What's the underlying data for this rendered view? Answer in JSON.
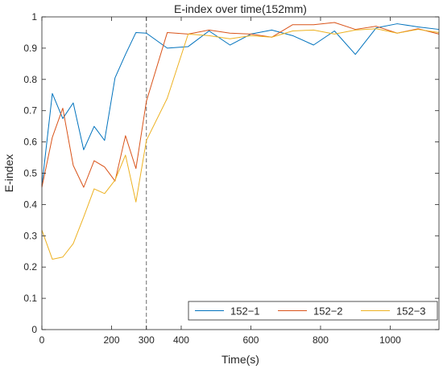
{
  "chart_data": {
    "type": "line",
    "title": "E-index over time(152mm)",
    "xlabel": "Time(s)",
    "ylabel": "E-index",
    "xlim": [
      0,
      1140
    ],
    "ylim": [
      0,
      1
    ],
    "x_ticks": [
      0,
      200,
      300,
      400,
      600,
      800,
      1000
    ],
    "y_ticks": [
      0,
      0.1,
      0.2,
      0.3,
      0.4,
      0.5,
      0.6,
      0.7,
      0.8,
      0.9,
      1
    ],
    "y_tick_labels": [
      "0",
      "0.1",
      "0.2",
      "0.3",
      "0.4",
      "0.5",
      "0.6",
      "0.7",
      "0.8",
      "0.9",
      "1"
    ],
    "grid": false,
    "legend_position": "bottom-right",
    "reference_line": {
      "x": 300,
      "style": "dashed"
    },
    "series": [
      {
        "name": "152−1",
        "color": "#0072BD",
        "x": [
          0,
          30,
          60,
          90,
          120,
          150,
          180,
          210,
          240,
          270,
          300,
          360,
          420,
          480,
          540,
          600,
          660,
          720,
          780,
          840,
          900,
          960,
          1020,
          1080,
          1140
        ],
        "y": [
          0.46,
          0.755,
          0.675,
          0.725,
          0.575,
          0.65,
          0.605,
          0.805,
          0.88,
          0.95,
          0.948,
          0.9,
          0.905,
          0.955,
          0.91,
          0.945,
          0.958,
          0.94,
          0.91,
          0.955,
          0.88,
          0.965,
          0.978,
          0.968,
          0.96
        ]
      },
      {
        "name": "152−2",
        "color": "#D95319",
        "x": [
          0,
          30,
          60,
          90,
          120,
          150,
          180,
          210,
          240,
          270,
          300,
          360,
          420,
          480,
          540,
          600,
          660,
          720,
          780,
          840,
          900,
          960,
          1020,
          1080,
          1140
        ],
        "y": [
          0.455,
          0.615,
          0.708,
          0.525,
          0.455,
          0.54,
          0.52,
          0.475,
          0.62,
          0.515,
          0.73,
          0.95,
          0.945,
          0.958,
          0.948,
          0.945,
          0.935,
          0.975,
          0.975,
          0.982,
          0.96,
          0.97,
          0.948,
          0.962,
          0.945
        ]
      },
      {
        "name": "152−3",
        "color": "#EDB120",
        "x": [
          0,
          30,
          60,
          90,
          120,
          150,
          180,
          210,
          240,
          270,
          300,
          360,
          420,
          480,
          540,
          600,
          660,
          720,
          780,
          840,
          900,
          960,
          1020,
          1080,
          1140
        ],
        "y": [
          0.318,
          0.225,
          0.232,
          0.275,
          0.36,
          0.45,
          0.435,
          0.478,
          0.558,
          0.408,
          0.605,
          0.74,
          0.945,
          0.94,
          0.93,
          0.94,
          0.935,
          0.955,
          0.958,
          0.945,
          0.958,
          0.962,
          0.948,
          0.96,
          0.95
        ]
      }
    ]
  }
}
